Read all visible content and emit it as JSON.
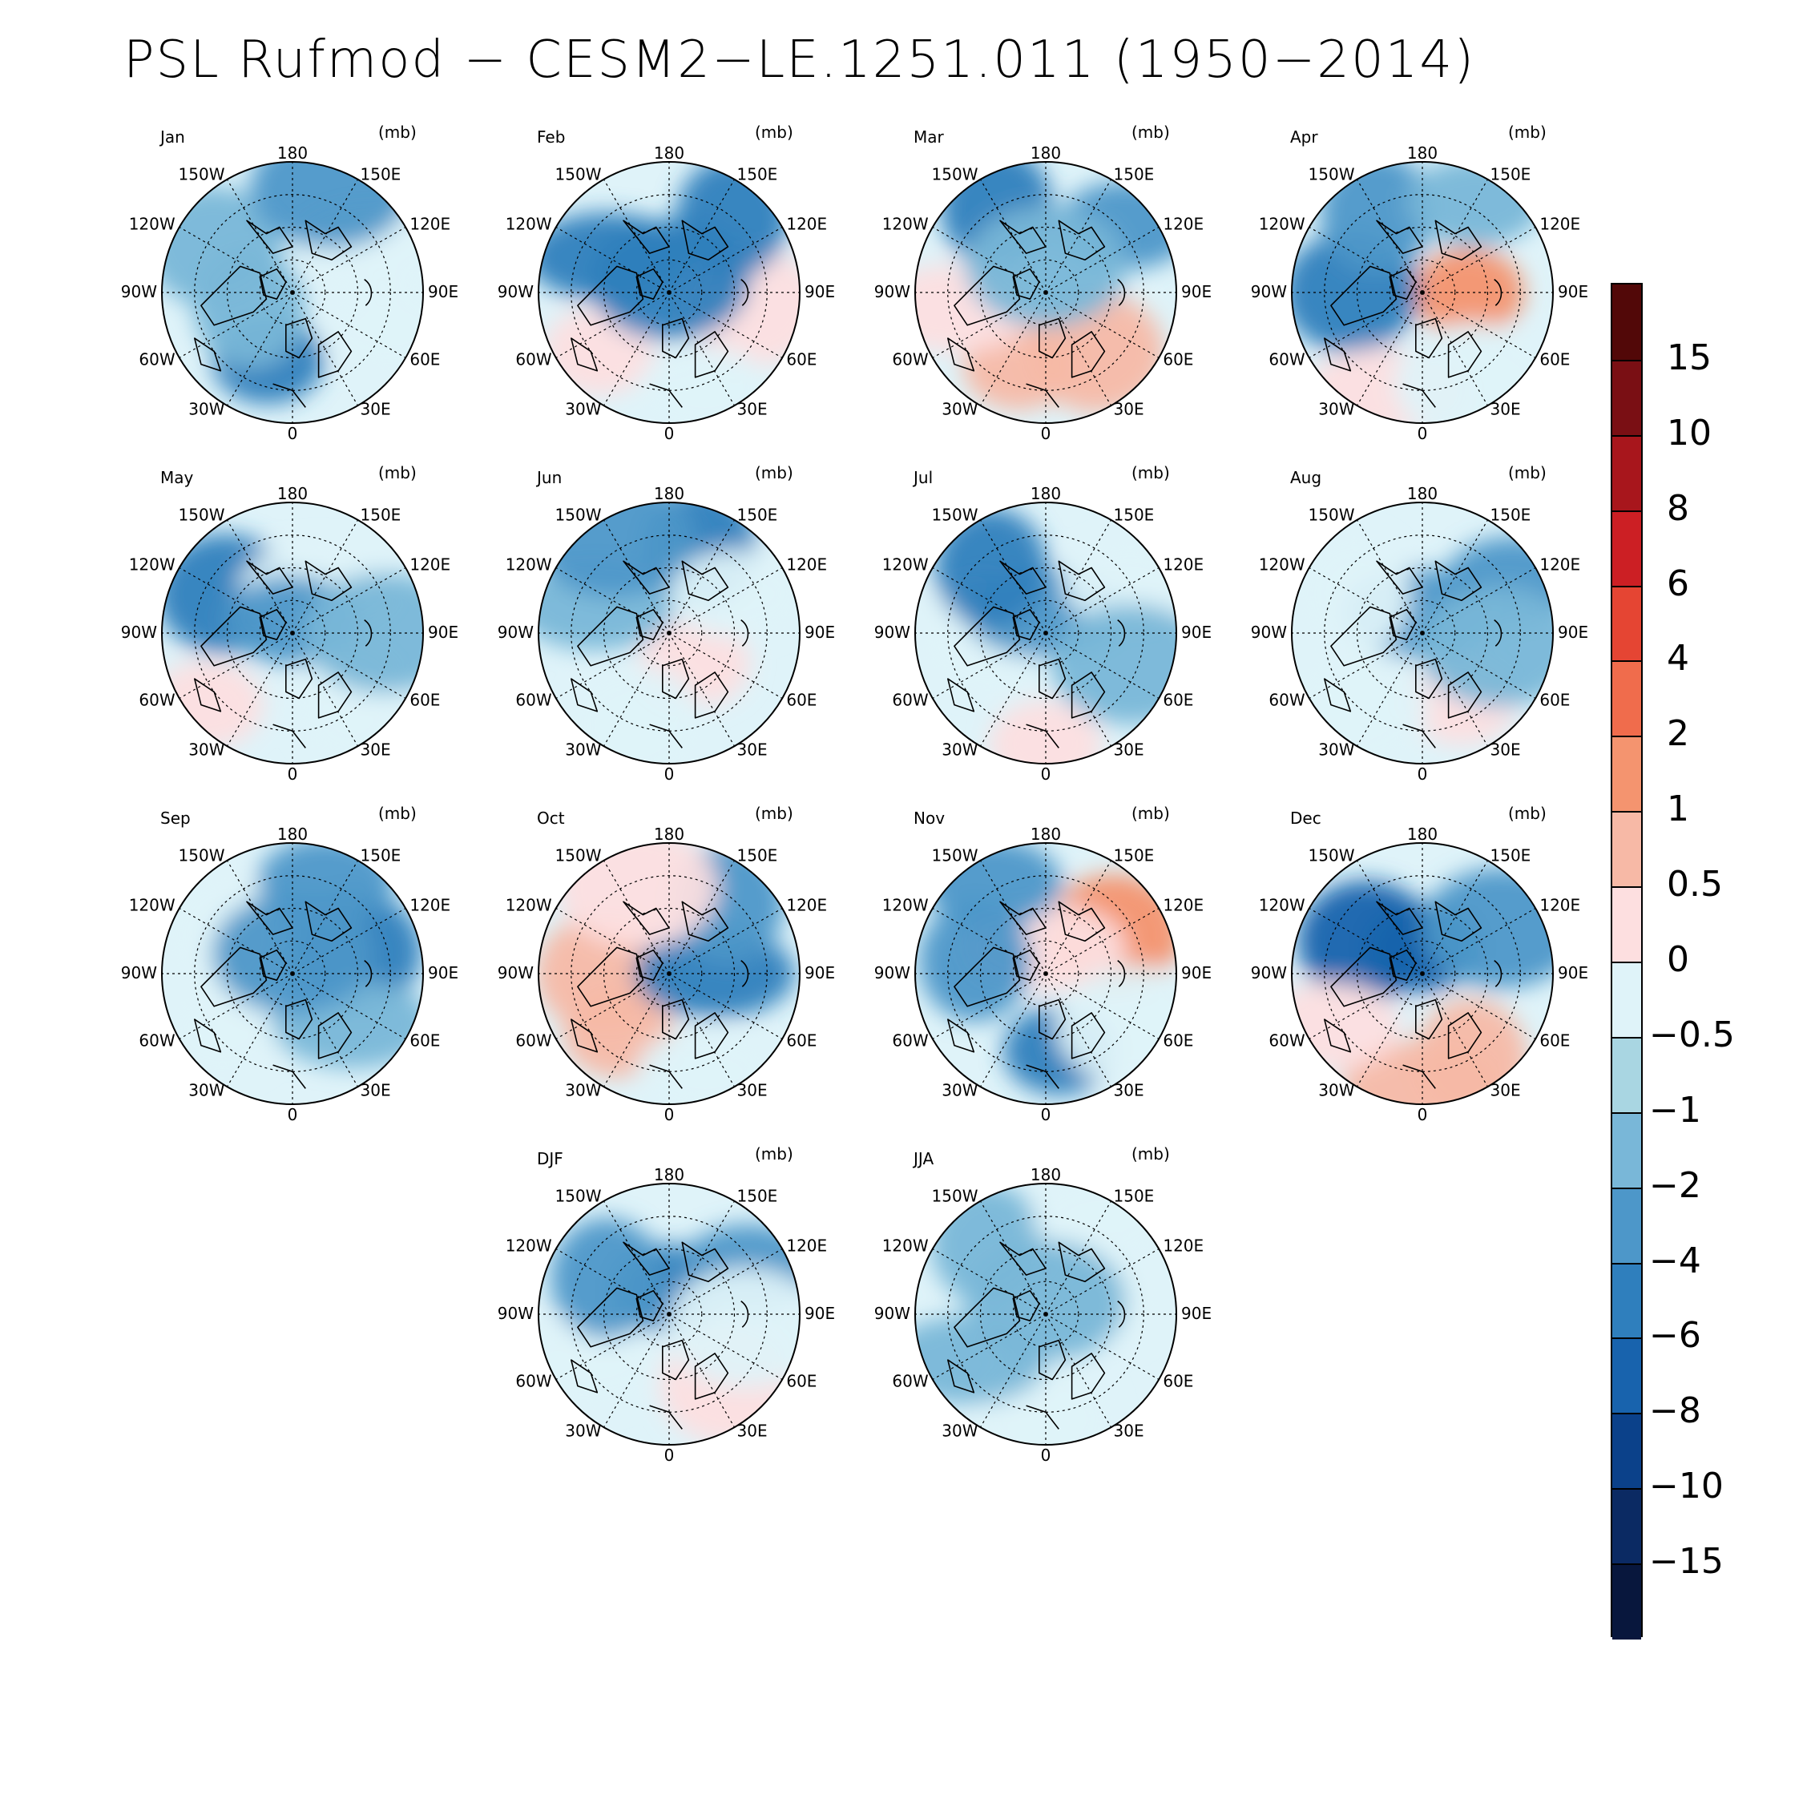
{
  "title": "PSL Rufmod − CESM2−LE.1251.011 (1950−2014)",
  "units": "(mb)",
  "lon_labels": {
    "top": "180",
    "bottom": "0",
    "left": [
      "150W",
      "120W",
      "90W",
      "60W",
      "30W"
    ],
    "right": [
      "150E",
      "120E",
      "90E",
      "60E",
      "30E"
    ]
  },
  "panels": [
    {
      "name": "Jan",
      "blobs": [
        {
          "a": 200,
          "r": 0.55,
          "c": 4
        },
        {
          "a": 300,
          "r": 0.7,
          "c": 6
        },
        {
          "a": 60,
          "r": 0.7,
          "c": 8
        },
        {
          "a": 250,
          "r": 0.35,
          "c": 6
        },
        {
          "a": 110,
          "r": 0.8,
          "c": 8
        },
        {
          "a": 20,
          "r": 0.85,
          "c": 5
        }
      ]
    },
    {
      "name": "Feb",
      "blobs": [
        {
          "a": 230,
          "r": 0.7,
          "c": 9
        },
        {
          "a": 100,
          "r": 0.65,
          "c": 9
        },
        {
          "a": 300,
          "r": 0.55,
          "c": 4
        },
        {
          "a": 40,
          "r": 0.75,
          "c": 4
        },
        {
          "a": 160,
          "r": 0.8,
          "c": 8
        },
        {
          "a": 0,
          "r": 0.1,
          "c": 4
        }
      ]
    },
    {
      "name": "Mar",
      "blobs": [
        {
          "a": 200,
          "r": 0.6,
          "c": 10
        },
        {
          "a": 140,
          "r": 0.6,
          "c": 10
        },
        {
          "a": 260,
          "r": 0.7,
          "c": 9
        },
        {
          "a": 330,
          "r": 0.75,
          "c": 4
        },
        {
          "a": 50,
          "r": 0.8,
          "c": 5
        },
        {
          "a": 0,
          "r": 0.2,
          "c": 6
        }
      ]
    },
    {
      "name": "Apr",
      "blobs": [
        {
          "a": 90,
          "r": 0.35,
          "c": 11
        },
        {
          "a": 270,
          "r": 0.55,
          "c": 4
        },
        {
          "a": 200,
          "r": 0.8,
          "c": 9
        },
        {
          "a": 330,
          "r": 0.7,
          "c": 5
        },
        {
          "a": 30,
          "r": 0.8,
          "c": 6
        },
        {
          "a": 150,
          "r": 0.8,
          "c": 8
        }
      ]
    },
    {
      "name": "May",
      "blobs": [
        {
          "a": 230,
          "r": 0.85,
          "c": 9
        },
        {
          "a": 300,
          "r": 0.6,
          "c": 4
        },
        {
          "a": 30,
          "r": 0.4,
          "c": 8
        },
        {
          "a": 140,
          "r": 0.7,
          "c": 8
        },
        {
          "a": 0,
          "r": 0.1,
          "c": 5
        },
        {
          "a": 90,
          "r": 0.7,
          "c": 6
        }
      ]
    },
    {
      "name": "Jun",
      "blobs": [
        {
          "a": 140,
          "r": 0.3,
          "c": 9
        },
        {
          "a": 200,
          "r": 0.75,
          "c": 8
        },
        {
          "a": 290,
          "r": 0.6,
          "c": 6
        },
        {
          "a": 20,
          "r": 0.7,
          "c": 4
        },
        {
          "a": 60,
          "r": 0.6,
          "c": 8
        },
        {
          "a": 330,
          "r": 0.85,
          "c": 5
        }
      ]
    },
    {
      "name": "Jul",
      "blobs": [
        {
          "a": 180,
          "r": 0.85,
          "c": 9
        },
        {
          "a": 270,
          "r": 0.45,
          "c": 8
        },
        {
          "a": 0,
          "r": 0.15,
          "c": 5
        },
        {
          "a": 320,
          "r": 0.65,
          "c": 4
        },
        {
          "a": 60,
          "r": 0.75,
          "c": 8
        },
        {
          "a": 110,
          "r": 0.7,
          "c": 6
        }
      ]
    },
    {
      "name": "Aug",
      "blobs": [
        {
          "a": 150,
          "r": 0.6,
          "c": 9
        },
        {
          "a": 220,
          "r": 0.75,
          "c": 8
        },
        {
          "a": 0,
          "r": 0.15,
          "c": 5
        },
        {
          "a": 300,
          "r": 0.6,
          "c": 8
        },
        {
          "a": 60,
          "r": 0.8,
          "c": 5
        },
        {
          "a": 100,
          "r": 0.6,
          "c": 6
        }
      ]
    },
    {
      "name": "Sep",
      "blobs": [
        {
          "a": 230,
          "r": 0.7,
          "c": 8
        },
        {
          "a": 70,
          "r": 0.5,
          "c": 4
        },
        {
          "a": 130,
          "r": 0.6,
          "c": 6
        },
        {
          "a": 300,
          "r": 0.6,
          "c": 8
        },
        {
          "a": 20,
          "r": 0.75,
          "c": 5
        },
        {
          "a": 0,
          "r": 0.15,
          "c": 5
        }
      ]
    },
    {
      "name": "Oct",
      "blobs": [
        {
          "a": 220,
          "r": 0.6,
          "c": 10
        },
        {
          "a": 270,
          "r": 0.5,
          "c": 10
        },
        {
          "a": 90,
          "r": 0.35,
          "c": 4
        },
        {
          "a": 40,
          "r": 0.7,
          "c": 5
        },
        {
          "a": 160,
          "r": 0.8,
          "c": 8
        },
        {
          "a": 340,
          "r": 0.7,
          "c": 9
        }
      ]
    },
    {
      "name": "Nov",
      "blobs": [
        {
          "a": 170,
          "r": 0.6,
          "c": 4
        },
        {
          "a": 60,
          "r": 0.6,
          "c": 11
        },
        {
          "a": 0,
          "r": 0.2,
          "c": 9
        },
        {
          "a": 280,
          "r": 0.55,
          "c": 5
        },
        {
          "a": 330,
          "r": 0.8,
          "c": 5
        },
        {
          "a": 120,
          "r": 0.8,
          "c": 8
        }
      ]
    },
    {
      "name": "Dec",
      "blobs": [
        {
          "a": 0,
          "r": 0.2,
          "c": 3
        },
        {
          "a": 300,
          "r": 0.5,
          "c": 3
        },
        {
          "a": 180,
          "r": 0.85,
          "c": 10
        },
        {
          "a": 150,
          "r": 0.75,
          "c": 10
        },
        {
          "a": 240,
          "r": 0.8,
          "c": 9
        },
        {
          "a": 60,
          "r": 0.7,
          "c": 5
        }
      ]
    },
    {
      "name": "DJF",
      "blobs": [
        {
          "a": 0,
          "r": 0.2,
          "c": 4
        },
        {
          "a": 140,
          "r": 0.7,
          "c": 9
        },
        {
          "a": 240,
          "r": 0.75,
          "c": 8
        },
        {
          "a": 300,
          "r": 0.55,
          "c": 5
        },
        {
          "a": 60,
          "r": 0.7,
          "c": 5
        },
        {
          "a": 100,
          "r": 0.6,
          "c": 8
        }
      ]
    },
    {
      "name": "JJA",
      "blobs": [
        {
          "a": 80,
          "r": 0.45,
          "c": 8
        },
        {
          "a": 180,
          "r": 0.8,
          "c": 8
        },
        {
          "a": 240,
          "r": 0.7,
          "c": 6
        },
        {
          "a": 320,
          "r": 0.7,
          "c": 6
        },
        {
          "a": 30,
          "r": 0.85,
          "c": 8
        },
        {
          "a": 0,
          "r": 0.1,
          "c": 6
        }
      ]
    }
  ],
  "colorbar": {
    "colors": [
      "#08173d",
      "#0b2a63",
      "#0b418a",
      "#1863ad",
      "#2f7fbd",
      "#4d97c9",
      "#79b7d8",
      "#a9d6e2",
      "#dff3f9",
      "#fddfe0",
      "#f7b9a6",
      "#f4946f",
      "#f06c4c",
      "#e54533",
      "#cc1f24",
      "#a8161c",
      "#7a0f14",
      "#520808"
    ],
    "labels": [
      "−15",
      "−10",
      "−8",
      "−6",
      "−4",
      "−2",
      "−1",
      "−0.5",
      "0",
      "0.5",
      "1",
      "2",
      "4",
      "6",
      "8",
      "10",
      "15"
    ]
  }
}
